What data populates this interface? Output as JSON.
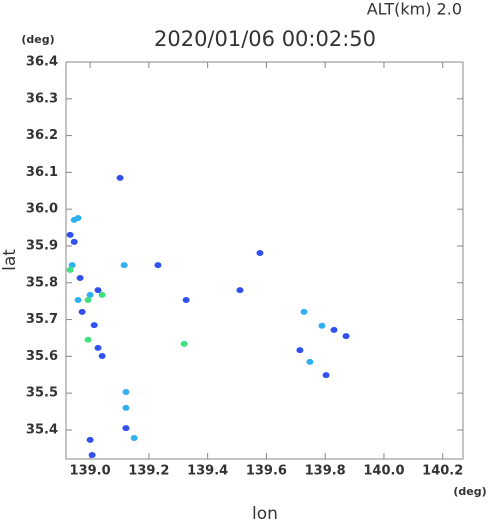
{
  "chart_data": {
    "type": "scatter",
    "title": "2020/01/06 00:02:50",
    "subtitle": "ALT(km) 2.0",
    "x_label": "lon",
    "y_label": "lat",
    "x_unit": "(deg)",
    "y_unit": "(deg)",
    "xlim": [
      138.918,
      140.269
    ],
    "ylim": [
      35.321,
      36.4
    ],
    "xticks": [
      {
        "value": 139.0,
        "label": "139.0"
      },
      {
        "value": 139.2,
        "label": "139.2"
      },
      {
        "value": 139.4,
        "label": "139.4"
      },
      {
        "value": 139.6,
        "label": "139.6"
      },
      {
        "value": 139.8,
        "label": "139.8"
      },
      {
        "value": 140.0,
        "label": "140.0"
      },
      {
        "value": 140.2,
        "label": "140.2"
      }
    ],
    "yticks": [
      {
        "value": 35.4,
        "label": "35.4"
      },
      {
        "value": 35.5,
        "label": "35.5"
      },
      35.6,
      35.7,
      35.8,
      35.9,
      {
        "value": 36.0,
        "label": "36.0"
      },
      36.1,
      36.2,
      36.3,
      36.4
    ],
    "series": [
      {
        "color": "#3050f0",
        "x": [
          138.932,
          138.946,
          138.966,
          138.973,
          139.027,
          139.014,
          139.027,
          139.041,
          139.0,
          139.007,
          139.102,
          139.122,
          139.578,
          139.51,
          139.83,
          139.871,
          139.714,
          139.803,
          139.231,
          139.327
        ],
        "y": [
          35.93,
          35.911,
          35.813,
          35.721,
          35.78,
          35.685,
          35.623,
          35.601,
          35.373,
          35.332,
          36.085,
          35.405,
          35.881,
          35.78,
          35.672,
          35.655,
          35.617,
          35.549,
          35.848,
          35.753
        ]
      },
      {
        "color": "#30b0f0",
        "x": [
          138.946,
          138.959,
          138.939,
          138.959,
          139.0,
          139.116,
          139.122,
          139.122,
          139.15,
          139.728,
          139.789,
          139.748
        ],
        "y": [
          35.971,
          35.976,
          35.848,
          35.753,
          35.767,
          35.848,
          35.503,
          35.46,
          35.378,
          35.721,
          35.683,
          35.585
        ]
      },
      {
        "color": "#40e080",
        "x": [
          138.932,
          138.993,
          139.041,
          138.993,
          139.32
        ],
        "y": [
          35.835,
          35.753,
          35.767,
          35.645,
          35.634
        ]
      }
    ]
  }
}
